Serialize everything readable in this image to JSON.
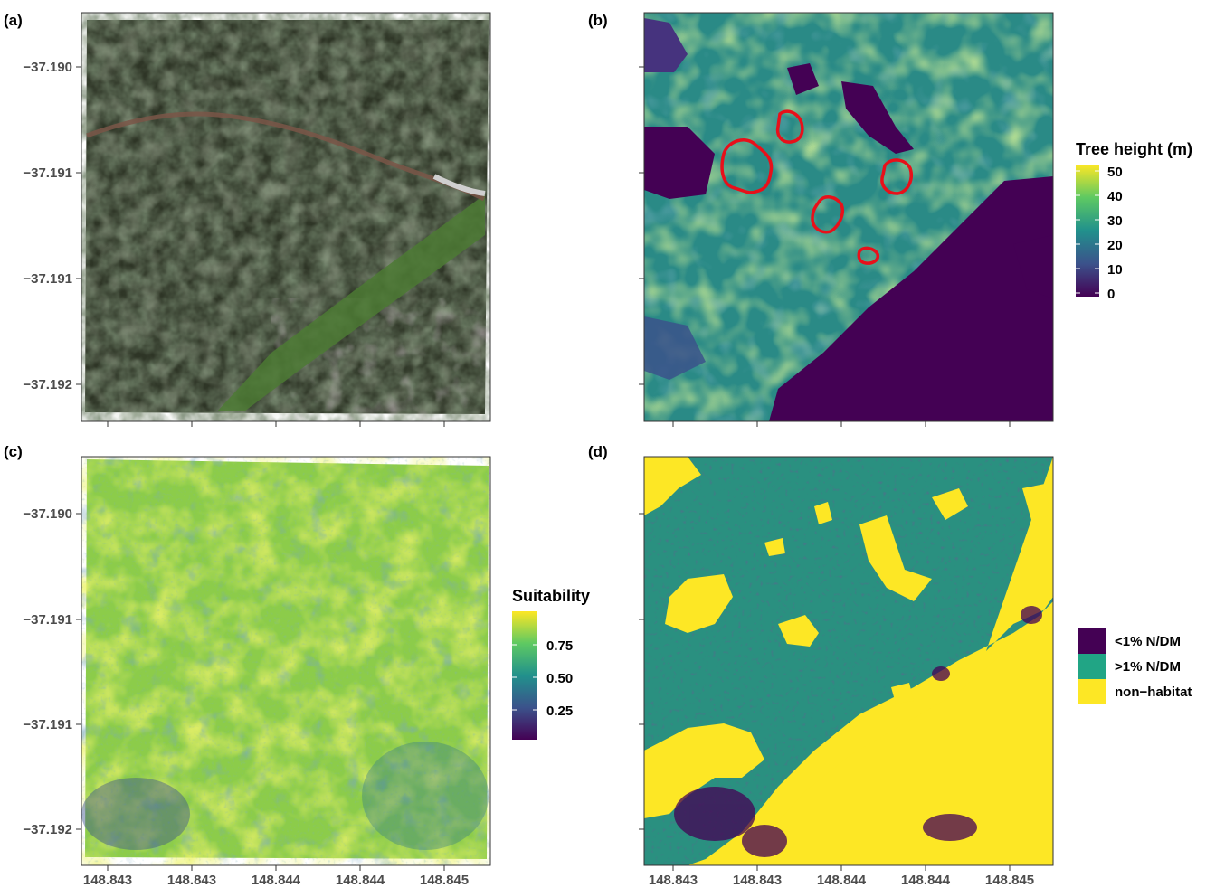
{
  "panels": [
    {
      "id": "a",
      "letter": "(a)",
      "type": "rgb-orthophoto"
    },
    {
      "id": "b",
      "letter": "(b)",
      "type": "canopy-height-raster"
    },
    {
      "id": "c",
      "letter": "(c)",
      "type": "suitability-raster"
    },
    {
      "id": "d",
      "letter": "(d)",
      "type": "categorical-habitat-raster"
    }
  ],
  "y_ticks": [
    "−37.190",
    "−37.191",
    "−37.191",
    "−37.192"
  ],
  "x_ticks": [
    "148.843",
    "148.843",
    "148.844",
    "148.844",
    "148.845"
  ],
  "legends": {
    "tree_height": {
      "title": "Tree height (m)",
      "labels": [
        "50",
        "40",
        "30",
        "20",
        "10",
        "0"
      ],
      "range": [
        0,
        50
      ],
      "palette": "viridis"
    },
    "suitability": {
      "title": "Suitability",
      "labels": [
        "0.75",
        "0.50",
        "0.25"
      ],
      "palette": "viridis"
    },
    "habitat": {
      "items": [
        {
          "label": "<1% N/DM",
          "color": "#440154"
        },
        {
          "label": ">1% N/DM",
          "color": "#21a585"
        },
        {
          "label": "non−habitat",
          "color": "#fde725"
        }
      ]
    }
  },
  "colors": {
    "viridis_dark": "#440154",
    "viridis_blue": "#3b528b",
    "viridis_teal": "#21918c",
    "viridis_green": "#5ec962",
    "viridis_yellow": "#fde725",
    "highlight_outline": "#e8101a",
    "forest_dark": "#2c3324",
    "forest_light": "#5d6b45",
    "grass": "#4f7a35",
    "track": "#7a5a4a"
  }
}
